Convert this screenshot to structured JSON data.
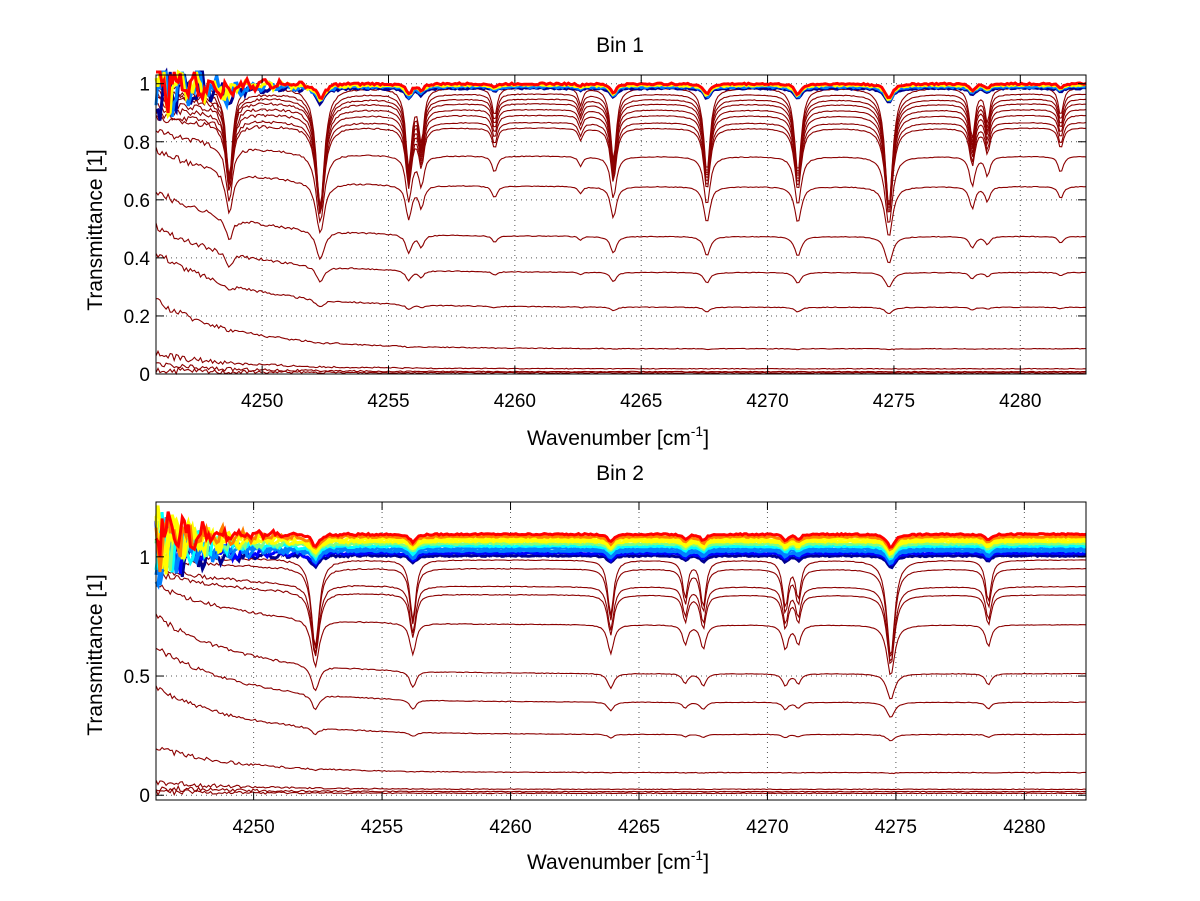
{
  "chart_data": [
    {
      "type": "line",
      "title": "Bin 1",
      "xlabel": "Wavenumber [cm",
      "xlabel_sup": "-1",
      "xlabel_end": "]",
      "ylabel": "Transmittance [1]",
      "xlim": [
        4245.8,
        4282.6
      ],
      "ylim": [
        0,
        1.03
      ],
      "xticks": [
        4250,
        4255,
        4260,
        4265,
        4270,
        4275,
        4280
      ],
      "yticks": [
        0,
        0.2,
        0.4,
        0.6,
        0.8,
        1
      ],
      "ytick_labels": [
        "0",
        "0.2",
        "0.4",
        "0.6",
        "0.8",
        "1"
      ],
      "grid": "dotted",
      "line_color": "#8b0000",
      "colormap": [
        "#00008f",
        "#0000ff",
        "#0080ff",
        "#00ffff",
        "#80ff80",
        "#ffff00",
        "#ff8000",
        "#ff0000"
      ],
      "top_bundle_levels": [
        0.985,
        0.99,
        0.995,
        1.0
      ],
      "baseline_levels": [
        0.987,
        0.966,
        0.948,
        0.932,
        0.912,
        0.892,
        0.867,
        0.848,
        0.75,
        0.646,
        0.474,
        0.35,
        0.23,
        0.087,
        0.018,
        0.008,
        0.004
      ],
      "start_levels": [
        0.99,
        0.97,
        0.96,
        0.95,
        0.93,
        0.91,
        0.89,
        0.88,
        0.84,
        0.77,
        0.63,
        0.51,
        0.42,
        0.25,
        0.068,
        0.03,
        0.012
      ],
      "absorption_lines": [
        {
          "x": 4248.7,
          "depth": 0.32,
          "width": 0.16
        },
        {
          "x": 4252.3,
          "depth": 0.42,
          "width": 0.2
        },
        {
          "x": 4255.8,
          "depth": 0.28,
          "width": 0.14
        },
        {
          "x": 4256.3,
          "depth": 0.18,
          "width": 0.12
        },
        {
          "x": 4259.2,
          "depth": 0.1,
          "width": 0.12
        },
        {
          "x": 4262.6,
          "depth": 0.06,
          "width": 0.1
        },
        {
          "x": 4263.9,
          "depth": 0.26,
          "width": 0.14
        },
        {
          "x": 4267.6,
          "depth": 0.3,
          "width": 0.15
        },
        {
          "x": 4271.2,
          "depth": 0.3,
          "width": 0.16
        },
        {
          "x": 4274.8,
          "depth": 0.42,
          "width": 0.18
        },
        {
          "x": 4278.1,
          "depth": 0.18,
          "width": 0.13
        },
        {
          "x": 4278.7,
          "depth": 0.12,
          "width": 0.11
        },
        {
          "x": 4281.6,
          "depth": 0.1,
          "width": 0.12
        }
      ]
    },
    {
      "type": "line",
      "title": "Bin 2",
      "xlabel": "Wavenumber [cm",
      "xlabel_sup": "-1",
      "xlabel_end": "]",
      "ylabel": "Transmittance [1]",
      "xlim": [
        4246.2,
        4282.4
      ],
      "ylim": [
        -0.02,
        1.23
      ],
      "xticks": [
        4250,
        4255,
        4260,
        4265,
        4270,
        4275,
        4280
      ],
      "yticks": [
        0,
        0.5,
        1
      ],
      "ytick_labels": [
        "0",
        "0.5",
        "1"
      ],
      "grid": "dotted",
      "line_color": "#8b0000",
      "colormap": [
        "#00008f",
        "#0000ff",
        "#0080ff",
        "#00ffff",
        "#80ff80",
        "#ffff00",
        "#ff8000",
        "#ff0000"
      ],
      "top_bundle_levels": [
        1.005,
        1.015,
        1.025,
        1.035,
        1.045,
        1.055,
        1.065,
        1.075,
        1.085,
        1.095
      ],
      "baseline_levels": [
        0.987,
        0.95,
        0.875,
        0.84,
        0.715,
        0.51,
        0.39,
        0.255,
        0.095,
        0.025,
        0.015,
        0.008
      ],
      "start_levels": [
        1.0,
        0.99,
        0.95,
        0.93,
        0.88,
        0.75,
        0.62,
        0.45,
        0.2,
        0.055,
        0.03,
        0.015
      ],
      "absorption_lines": [
        {
          "x": 4252.4,
          "depth": 0.38,
          "width": 0.18
        },
        {
          "x": 4256.2,
          "depth": 0.26,
          "width": 0.14
        },
        {
          "x": 4263.9,
          "depth": 0.24,
          "width": 0.14
        },
        {
          "x": 4266.8,
          "depth": 0.16,
          "width": 0.12
        },
        {
          "x": 4267.5,
          "depth": 0.2,
          "width": 0.13
        },
        {
          "x": 4270.7,
          "depth": 0.2,
          "width": 0.13
        },
        {
          "x": 4271.2,
          "depth": 0.16,
          "width": 0.12
        },
        {
          "x": 4274.8,
          "depth": 0.42,
          "width": 0.18
        },
        {
          "x": 4278.6,
          "depth": 0.18,
          "width": 0.13
        }
      ]
    }
  ]
}
